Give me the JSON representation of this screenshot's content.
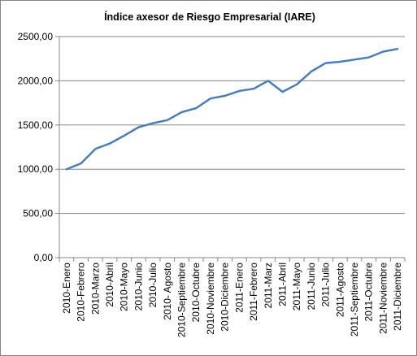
{
  "chart_data": {
    "type": "line",
    "title": "Índice axesor de Riesgo Empresarial (IARE)",
    "xlabel": "",
    "ylabel": "",
    "ylim": [
      0,
      2500
    ],
    "yticks": [
      "0,00",
      "500,00",
      "1000,00",
      "1500,00",
      "2000,00",
      "2500,00"
    ],
    "grid": true,
    "legend": "none",
    "categories": [
      "2010-Enero",
      "2010-Febrero",
      "2010-Marzo",
      "2010-Abril",
      "2010-Mayo",
      "2010-Junio",
      "2010-Julio",
      "2010- Agosto",
      "2010-Septiembre",
      "2010-Octubre",
      "2010-Noviembre",
      "2010-Diciembre",
      "2011-Enero",
      "2011-Febrero",
      "2011-Marz",
      "2011-Abril",
      "2011-Mayo",
      "2011-Junio",
      "2011-Julio",
      "2011-Agosto",
      "2011-Septiembre",
      "2011-Octubre",
      "2011-Noviembre",
      "2011-Diciembre"
    ],
    "series": [
      {
        "values": [
          1000,
          1065,
          1230,
          1290,
          1380,
          1475,
          1520,
          1555,
          1645,
          1690,
          1800,
          1830,
          1885,
          1910,
          2000,
          1875,
          1960,
          2105,
          2200,
          2215,
          2240,
          2265,
          2330,
          2360
        ],
        "color": "#4a7ebb"
      }
    ],
    "colors": {
      "line": "#4a7ebb",
      "grid": "#868686",
      "axis": "#868686",
      "border": "#868686"
    }
  }
}
